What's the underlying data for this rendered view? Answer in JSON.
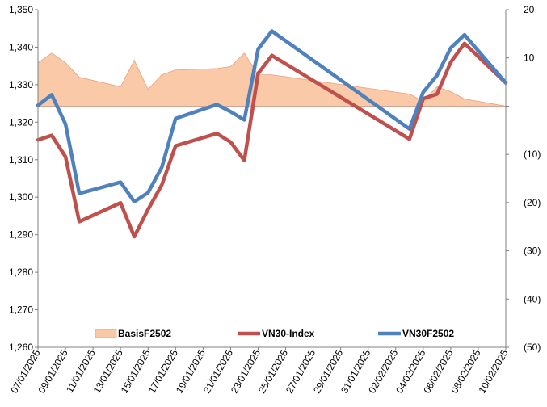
{
  "chart_data": {
    "type": "line",
    "title": "",
    "xlabel": "",
    "ylabel": "",
    "y2label": "",
    "grid": false,
    "legend_position": "bottom",
    "ylim": [
      1260,
      1350
    ],
    "y2lim": [
      -50,
      20
    ],
    "yticks": [
      "1,260",
      "1,270",
      "1,280",
      "1,290",
      "1,300",
      "1,310",
      "1,320",
      "1,330",
      "1,340",
      "1,350"
    ],
    "y2ticks": [
      "(50)",
      "(40)",
      "(30)",
      "(20)",
      "(10)",
      "-",
      "10",
      "20"
    ],
    "xticks": [
      "07/01/2025",
      "09/01/2025",
      "11/01/2025",
      "13/01/2025",
      "15/01/2025",
      "17/01/2025",
      "19/01/2025",
      "21/01/2025",
      "23/01/2025",
      "25/01/2025",
      "27/01/2025",
      "29/01/2025",
      "31/01/2025",
      "02/02/2025",
      "04/02/2025",
      "06/02/2025",
      "08/02/2025",
      "10/02/2025"
    ],
    "x": [
      "07/01/2025",
      "08/01/2025",
      "09/01/2025",
      "10/01/2025",
      "13/01/2025",
      "14/01/2025",
      "15/01/2025",
      "16/01/2025",
      "17/01/2025",
      "20/01/2025",
      "21/01/2025",
      "22/01/2025",
      "23/01/2025",
      "24/01/2025",
      "03/02/2025",
      "04/02/2025",
      "05/02/2025",
      "06/02/2025",
      "07/02/2025",
      "10/02/2025"
    ],
    "series": [
      {
        "name": "BasisF2502",
        "type": "area",
        "axis": "right",
        "color": "#f9c9a8",
        "edge_color": "#e8a080",
        "values": [
          9,
          11,
          9,
          6,
          4,
          9.5,
          3.5,
          6.5,
          7.5,
          7.8,
          8.2,
          11,
          6.5,
          6.5,
          2.5,
          1,
          4,
          3,
          1.5,
          0
        ]
      },
      {
        "name": "VN30-Index",
        "type": "line",
        "axis": "left",
        "color": "#c0504d",
        "values": [
          1315.3,
          1316.5,
          1310.8,
          1293.5,
          1298.5,
          1289.5,
          1296.7,
          1303.3,
          1313.7,
          1317,
          1314.7,
          1309.8,
          1333,
          1337.8,
          1315.5,
          1326.3,
          1327.5,
          1336,
          1341,
          1330.5
        ]
      },
      {
        "name": "VN30F2502",
        "type": "line",
        "axis": "left",
        "color": "#4f81bd",
        "values": [
          1324.5,
          1327.3,
          1319.5,
          1301,
          1304,
          1298.8,
          1301.2,
          1308,
          1321,
          1324.7,
          1322.8,
          1320.6,
          1339.5,
          1344.3,
          1318.2,
          1328,
          1332.5,
          1339.8,
          1343.3,
          1330.5
        ]
      }
    ]
  }
}
